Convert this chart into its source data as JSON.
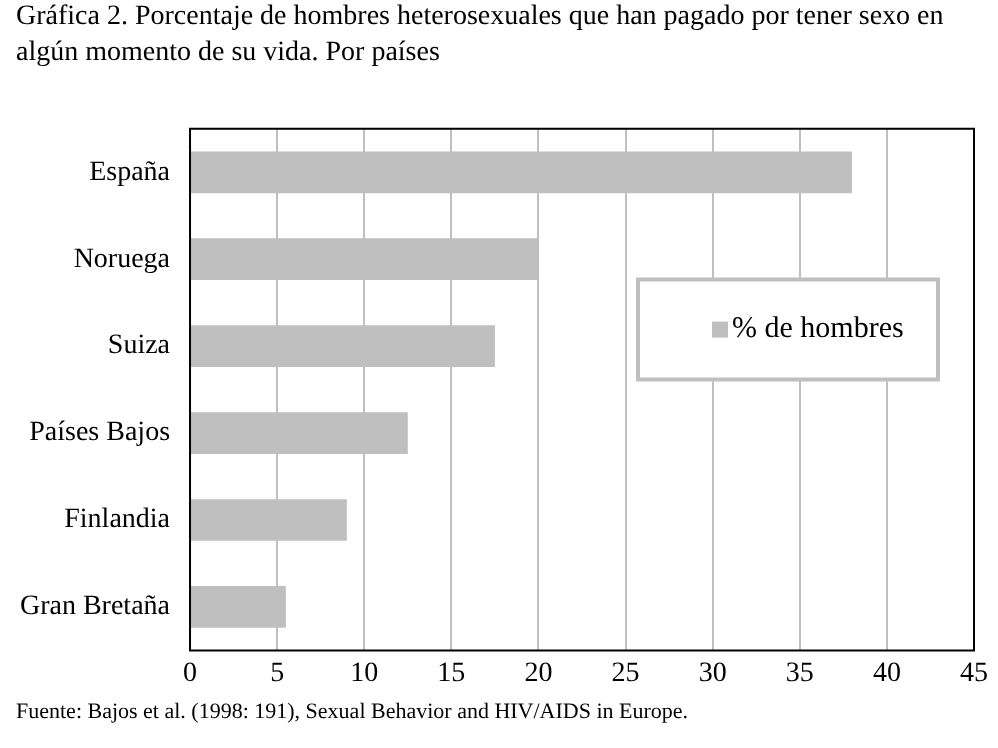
{
  "chart_data": {
    "type": "bar",
    "orientation": "horizontal",
    "title": "Gráfica 2. Porcentaje de hombres heterosexuales que han pagado por tener sexo en algún momento de su vida. Por países",
    "categories": [
      "España",
      "Noruega",
      "Suiza",
      "Países Bajos",
      "Finlandia",
      "Gran Bretaña"
    ],
    "series": [
      {
        "name": "% de hombres",
        "color": "#bfbfbf",
        "values": [
          38,
          20,
          17.5,
          12.5,
          9,
          5.5
        ]
      }
    ],
    "xlim": [
      0,
      45
    ],
    "xticks": [
      0,
      5,
      10,
      15,
      20,
      25,
      30,
      35,
      40,
      45
    ],
    "grid": "x",
    "legend": "right",
    "annotations": [
      "Fuente: Bajos et al. (1998: 191), Sexual Behavior and HIV/AIDS in Europe."
    ]
  }
}
